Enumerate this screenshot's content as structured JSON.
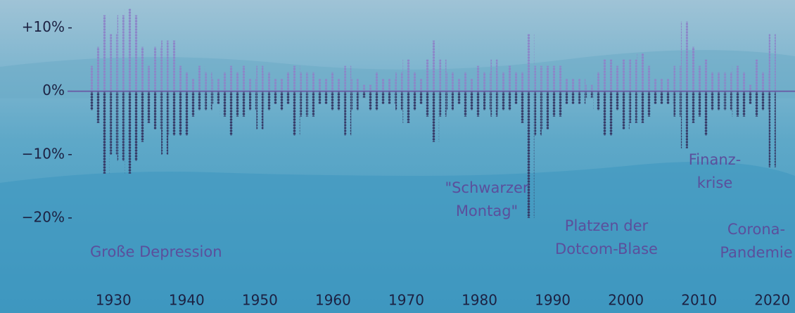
{
  "chart_data": {
    "type": "dotcolumns",
    "x": [
      1927,
      1928,
      1929,
      1930,
      1931,
      1932,
      1933,
      1934,
      1935,
      1936,
      1937,
      1938,
      1939,
      1940,
      1941,
      1942,
      1943,
      1944,
      1945,
      1946,
      1947,
      1948,
      1949,
      1950,
      1951,
      1952,
      1953,
      1954,
      1955,
      1956,
      1957,
      1958,
      1959,
      1960,
      1961,
      1962,
      1963,
      1964,
      1965,
      1966,
      1967,
      1968,
      1969,
      1970,
      1971,
      1972,
      1973,
      1974,
      1975,
      1976,
      1977,
      1978,
      1979,
      1980,
      1981,
      1982,
      1983,
      1984,
      1985,
      1986,
      1987,
      1988,
      1989,
      1990,
      1991,
      1992,
      1993,
      1994,
      1995,
      1996,
      1997,
      1998,
      1999,
      2000,
      2001,
      2002,
      2003,
      2004,
      2005,
      2006,
      2007,
      2008,
      2009,
      2010,
      2011,
      2012,
      2013,
      2014,
      2015,
      2016,
      2017,
      2018,
      2019,
      2020
    ],
    "series": [
      {
        "color": "#8c86c8",
        "values": [
          4,
          7,
          12,
          9,
          12,
          13,
          12,
          7,
          4,
          7,
          8,
          8,
          4,
          3,
          2,
          4,
          3,
          2,
          3,
          4,
          3,
          4,
          2,
          4,
          3,
          2,
          2,
          3,
          4,
          3,
          3,
          2,
          2,
          3,
          2,
          4,
          2,
          1,
          1,
          3,
          2,
          2,
          3,
          5,
          3,
          2,
          5,
          8,
          5,
          3,
          2,
          3,
          2,
          4,
          3,
          5,
          3,
          4,
          3,
          3,
          9,
          4,
          4,
          4,
          4,
          2,
          2,
          2,
          1,
          3,
          5,
          5,
          4,
          5,
          5,
          6,
          4,
          2,
          2,
          2,
          4,
          11,
          7,
          4,
          5,
          3,
          3,
          3,
          4,
          3,
          1,
          5,
          3,
          9
        ]
      },
      {
        "color": "#363b68",
        "values": [
          -3,
          -5,
          -13,
          -10,
          -11,
          -13,
          -11,
          -8,
          -5,
          -6,
          -10,
          -7,
          -7,
          -7,
          -4,
          -3,
          -3,
          -2,
          -4,
          -7,
          -4,
          -4,
          -3,
          -6,
          -3,
          -2,
          -3,
          -2,
          -7,
          -4,
          -4,
          -2,
          -2,
          -3,
          -3,
          -7,
          -3,
          -1,
          -3,
          -3,
          -2,
          -2,
          -3,
          -5,
          -3,
          -2,
          -4,
          -8,
          -4,
          -3,
          -2,
          -4,
          -3,
          -4,
          -3,
          -4,
          -3,
          -3,
          -2,
          -5,
          -20,
          -7,
          -6,
          -4,
          -4,
          -2,
          -2,
          -2,
          -1,
          -3,
          -7,
          -7,
          -3,
          -6,
          -5,
          -5,
          -4,
          -2,
          -2,
          -2,
          -4,
          -9,
          -5,
          -4,
          -7,
          -3,
          -3,
          -3,
          -4,
          -4,
          -2,
          -4,
          -3,
          -12
        ]
      }
    ],
    "xlim": [
      1914.5,
      2023.1
    ],
    "ylim": [
      -35,
      14.4
    ],
    "xticks": [
      1930,
      1940,
      1950,
      1960,
      1970,
      1980,
      1990,
      2000,
      2010,
      2020
    ],
    "yticks": [
      {
        "value": 10,
        "label": "+10%"
      },
      {
        "value": 0,
        "label": "0%"
      },
      {
        "value": -10,
        "label": "−10%"
      },
      {
        "value": -20,
        "label": "−20%"
      }
    ],
    "annotations": [
      {
        "lines": [
          "Große Depression"
        ]
      },
      {
        "lines": [
          "\"Schwarzer",
          "Montag\""
        ]
      },
      {
        "lines": [
          "Platzen der",
          "Dotcom-Blase"
        ]
      },
      {
        "lines": [
          "Finanz-",
          "krise"
        ]
      },
      {
        "lines": [
          "Corona-",
          "Pandemie"
        ]
      }
    ]
  }
}
